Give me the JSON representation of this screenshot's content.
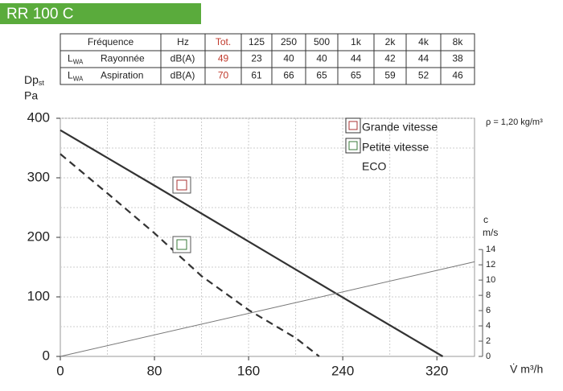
{
  "header": "RR 100 C",
  "table": {
    "header": [
      "Fréquence",
      "Hz",
      "Tot.",
      "125",
      "250",
      "500",
      "1k",
      "2k",
      "4k",
      "8k"
    ],
    "rows": [
      {
        "symbol": "L",
        "sub": "WA",
        "label": "Rayonnée",
        "unit": "dB(A)",
        "values": [
          49,
          23,
          40,
          40,
          44,
          42,
          44,
          38
        ]
      },
      {
        "symbol": "L",
        "sub": "WA",
        "label": "Aspiration",
        "unit": "dB(A)",
        "values": [
          70,
          61,
          66,
          65,
          65,
          59,
          52,
          46
        ]
      }
    ]
  },
  "chart_data": {
    "type": "line",
    "y_label": {
      "main": "Dp",
      "sub": "st",
      "unit": "Pa"
    },
    "x_label": "V̇ m³/h",
    "y2_label": {
      "main": "c",
      "unit": "m/s"
    },
    "annotation": "ρ = 1,20 kg/m³",
    "extra_legend": "ECO",
    "xlim": [
      0,
      352
    ],
    "xticks": [
      0,
      80,
      160,
      240,
      320
    ],
    "x_grid": [
      40,
      80,
      120,
      160,
      200,
      240,
      280,
      320
    ],
    "ylim": [
      0,
      400
    ],
    "yticks": [
      0,
      100,
      200,
      300,
      400
    ],
    "y_grid": [
      50,
      100,
      150,
      200,
      250,
      300,
      350,
      400
    ],
    "y2lim": [
      0,
      31.2
    ],
    "y2ticks": [
      0,
      2,
      4,
      6,
      8,
      10,
      12,
      14
    ],
    "series": [
      {
        "name": "Grande vitesse",
        "color": "#333333",
        "style": "solid",
        "x": [
          0,
          80,
          160,
          240,
          325
        ],
        "values": [
          380,
          287,
          193,
          99,
          0
        ]
      },
      {
        "name": "Petite vitesse",
        "color": "#333333",
        "style": "dashed",
        "x": [
          0,
          40,
          80,
          120,
          160,
          200,
          220
        ],
        "values": [
          340,
          274,
          207,
          135,
          78,
          31,
          0
        ]
      },
      {
        "color": "#777777",
        "style": "thin",
        "axis": "y2",
        "x": [
          0,
          352
        ],
        "values": [
          0,
          12.4
        ]
      }
    ]
  }
}
